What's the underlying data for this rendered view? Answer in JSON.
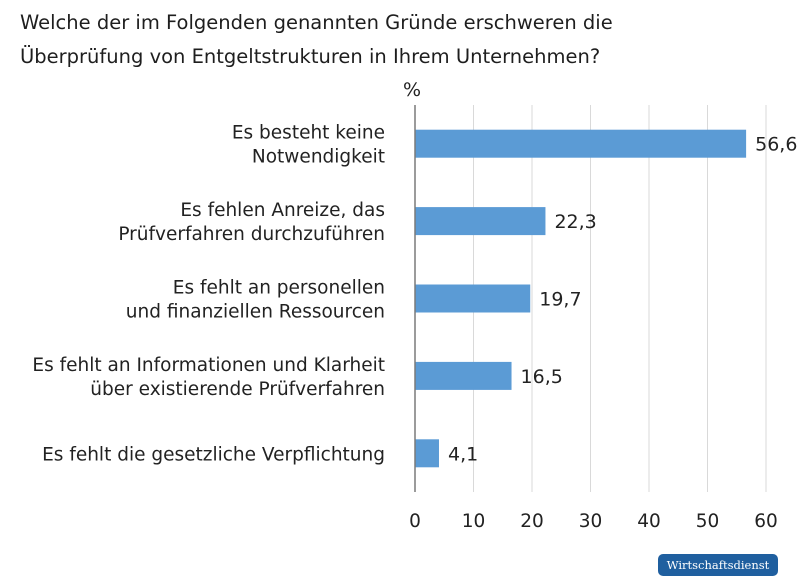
{
  "title_lines": [
    "Welche der im Folgenden genannten Gründe erschweren die",
    "Überprüfung von Entgeltstrukturen in Ihrem Unternehmen?"
  ],
  "source_badge": "Wirtschaftsdienst",
  "chart_data": {
    "type": "bar",
    "orientation": "horizontal",
    "title": "Welche der im Folgenden genannten Gründe erschweren die Überprüfung von Entgeltstrukturen in Ihrem Unternehmen?",
    "unit_label": "%",
    "categories": [
      [
        "Es besteht keine",
        "Notwendigkeit"
      ],
      [
        "Es fehlen Anreize, das",
        "Prüfverfahren durchzuführen"
      ],
      [
        "Es fehlt an personellen",
        "und finanziellen Ressourcen"
      ],
      [
        "Es fehlt an Informationen und Klarheit",
        "über existierende Prüfverfahren"
      ],
      [
        "Es fehlt die gesetzliche Verpflichtung"
      ]
    ],
    "values": [
      56.6,
      22.3,
      19.7,
      16.5,
      4.1
    ],
    "value_labels": [
      "56,6",
      "22,3",
      "19,7",
      "16,5",
      "4,1"
    ],
    "xlim": [
      0,
      60
    ],
    "xticks": [
      0,
      10,
      20,
      30,
      40,
      50,
      60
    ],
    "grid": true,
    "bar_color": "#5b9bd5"
  }
}
